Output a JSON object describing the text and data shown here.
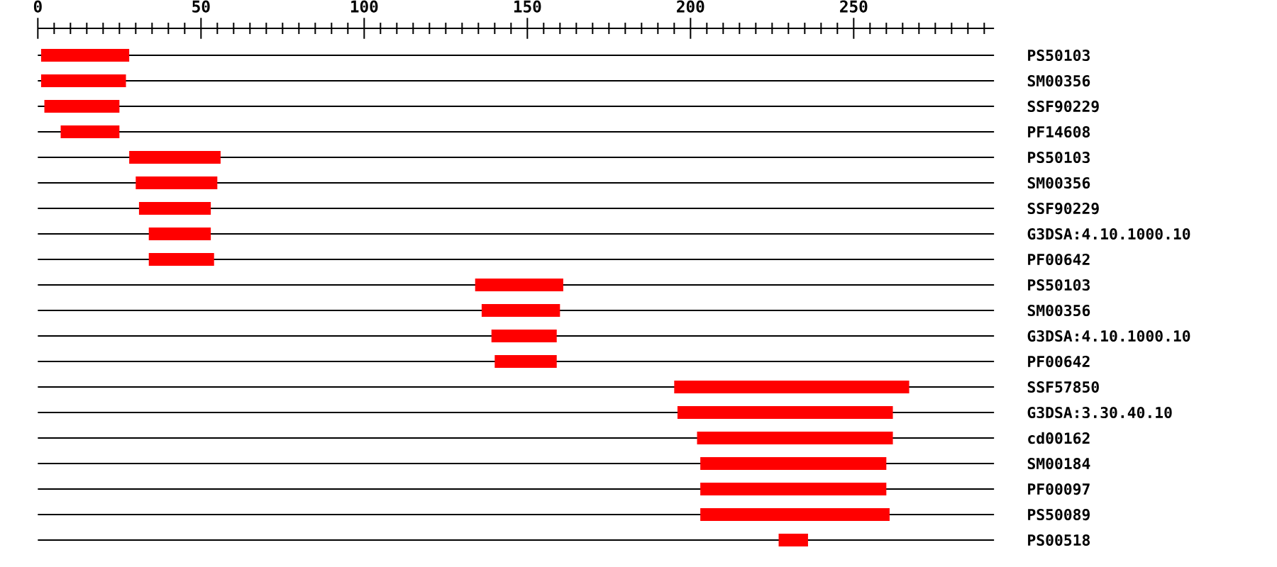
{
  "chart_data": {
    "type": "bar",
    "orientation": "horizontal",
    "color": "#ff0000",
    "grid": "y",
    "categories": [
      "PS50103",
      "SM00356",
      "SSF90229",
      "PF14608",
      "PS50103",
      "SM00356",
      "SSF90229",
      "G3DSA:4.10.1000.10",
      "PF00642",
      "PS50103",
      "SM00356",
      "G3DSA:4.10.1000.10",
      "PF00642",
      "SSF57850",
      "G3DSA:3.30.40.10",
      "cd00162",
      "SM00184",
      "PF00097",
      "PS50089",
      "PS00518"
    ],
    "base": [
      1,
      1,
      2,
      7,
      28,
      30,
      31,
      34,
      34,
      134,
      136,
      139,
      140,
      195,
      196,
      202,
      203,
      203,
      203,
      227
    ],
    "values": [
      27,
      26,
      23,
      18,
      28,
      25,
      22,
      19,
      20,
      27,
      24,
      20,
      19,
      72,
      66,
      60,
      57,
      57,
      58,
      9
    ],
    "xlim": [
      0,
      293
    ],
    "xticks": [
      0,
      {
        "value": 5,
        "label": null
      },
      {
        "value": 10,
        "label": null
      },
      {
        "value": 15,
        "label": null
      },
      {
        "value": 20,
        "label": null
      },
      {
        "value": 25,
        "label": null
      },
      {
        "value": 30,
        "label": null
      },
      {
        "value": 35,
        "label": null
      },
      {
        "value": 40,
        "label": null
      },
      {
        "value": 45,
        "label": null
      },
      50,
      {
        "value": 55,
        "label": null
      },
      {
        "value": 60,
        "label": null
      },
      {
        "value": 65,
        "label": null
      },
      {
        "value": 70,
        "label": null
      },
      {
        "value": 75,
        "label": null
      },
      {
        "value": 80,
        "label": null
      },
      {
        "value": 85,
        "label": null
      },
      {
        "value": 90,
        "label": null
      },
      {
        "value": 95,
        "label": null
      },
      100,
      {
        "value": 105,
        "label": null
      },
      {
        "value": 110,
        "label": null
      },
      {
        "value": 115,
        "label": null
      },
      {
        "value": 120,
        "label": null
      },
      {
        "value": 125,
        "label": null
      },
      {
        "value": 130,
        "label": null
      },
      {
        "value": 135,
        "label": null
      },
      {
        "value": 140,
        "label": null
      },
      {
        "value": 145,
        "label": null
      },
      150,
      {
        "value": 155,
        "label": null
      },
      {
        "value": 160,
        "label": null
      },
      {
        "value": 165,
        "label": null
      },
      {
        "value": 170,
        "label": null
      },
      {
        "value": 175,
        "label": null
      },
      {
        "value": 180,
        "label": null
      },
      {
        "value": 185,
        "label": null
      },
      {
        "value": 190,
        "label": null
      },
      {
        "value": 195,
        "label": null
      },
      200,
      {
        "value": 205,
        "label": null
      },
      {
        "value": 210,
        "label": null
      },
      {
        "value": 215,
        "label": null
      },
      {
        "value": 220,
        "label": null
      },
      {
        "value": 225,
        "label": null
      },
      {
        "value": 230,
        "label": null
      },
      {
        "value": 235,
        "label": null
      },
      {
        "value": 240,
        "label": null
      },
      {
        "value": 245,
        "label": null
      },
      250,
      {
        "value": 255,
        "label": null
      },
      {
        "value": 260,
        "label": null
      },
      {
        "value": 265,
        "label": null
      },
      {
        "value": 270,
        "label": null
      },
      {
        "value": 275,
        "label": null
      },
      {
        "value": 280,
        "label": null
      },
      {
        "value": 285,
        "label": null
      },
      {
        "value": 290,
        "label": null
      }
    ]
  }
}
